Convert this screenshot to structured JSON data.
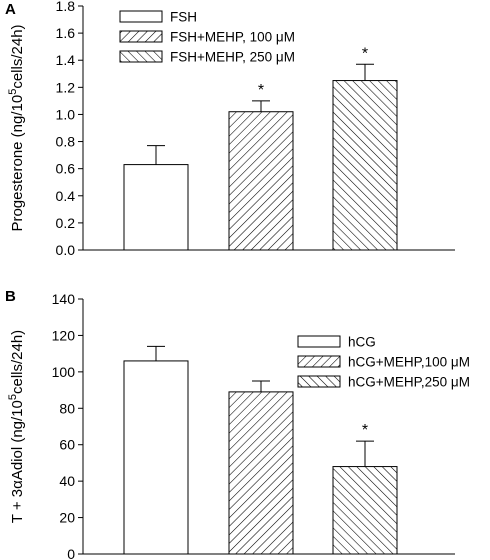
{
  "chart_data": [
    {
      "panel": "A",
      "type": "bar",
      "ylabel_prefix": "Progesterone (ng/10",
      "ylabel_sup": "5",
      "ylabel_suffix": "cells/24h)",
      "ylim": [
        0,
        1.8
      ],
      "yticks": [
        "0.0",
        "0.2",
        "0.4",
        "0.6",
        "0.8",
        "1.0",
        "1.2",
        "1.4",
        "1.6",
        "1.8"
      ],
      "legend_position": "top-left",
      "series": [
        {
          "name": "FSH",
          "value": 0.63,
          "error": 0.14,
          "significant": false,
          "pattern": "none"
        },
        {
          "name": "FSH+MEHP, 100 μM",
          "value": 1.02,
          "error": 0.08,
          "significant": true,
          "pattern": "forward"
        },
        {
          "name": "FSH+MEHP, 250 μM",
          "value": 1.25,
          "error": 0.12,
          "significant": true,
          "pattern": "back"
        }
      ],
      "significance_marker": "*"
    },
    {
      "panel": "B",
      "type": "bar",
      "ylabel_prefix": "T + 3αAdiol (ng/10",
      "ylabel_sup": "5",
      "ylabel_suffix": "cells/24h)",
      "ylim": [
        0,
        140
      ],
      "yticks": [
        "0",
        "20",
        "40",
        "60",
        "80",
        "100",
        "120",
        "140"
      ],
      "legend_position": "top-right",
      "series": [
        {
          "name": "hCG",
          "value": 106,
          "error": 8,
          "significant": false,
          "pattern": "none"
        },
        {
          "name": "hCG+MEHP,100 μM",
          "value": 89,
          "error": 6,
          "significant": false,
          "pattern": "forward"
        },
        {
          "name": "hCG+MEHP,250 μM",
          "value": 48,
          "error": 14,
          "significant": true,
          "pattern": "back"
        }
      ],
      "significance_marker": "*"
    }
  ]
}
